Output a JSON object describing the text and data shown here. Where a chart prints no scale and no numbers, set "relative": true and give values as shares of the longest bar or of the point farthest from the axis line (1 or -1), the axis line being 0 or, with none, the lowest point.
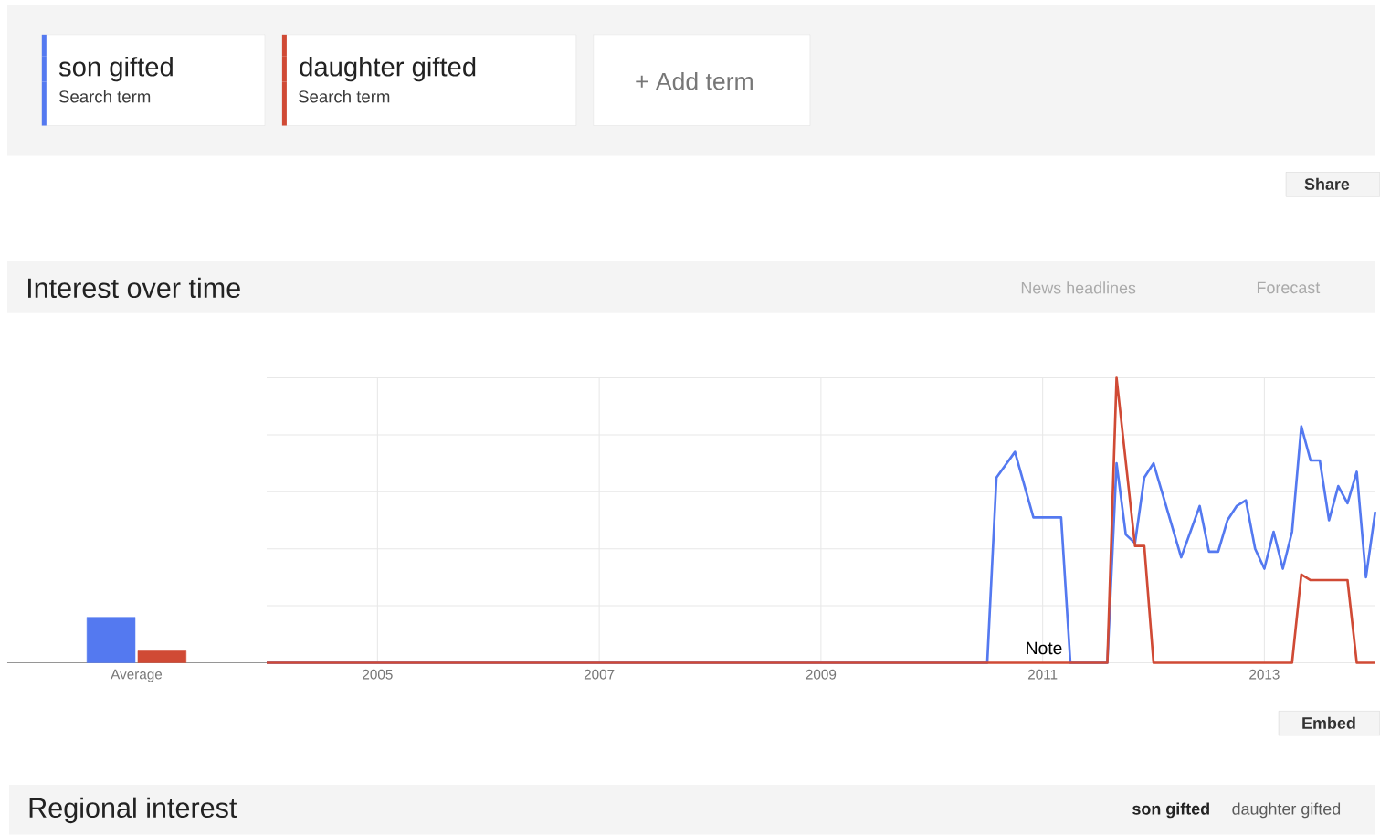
{
  "chart_data": [
    {
      "type": "line",
      "title": "Interest over time",
      "xlim": [
        "2004-01",
        "2014-01"
      ],
      "xticks": [
        "2005",
        "2007",
        "2009",
        "2011",
        "2013"
      ],
      "relative": true,
      "grid": true,
      "legend": "top left",
      "annotations": [
        "Search term",
        "Search term",
        "+ Add term",
        "Share",
        "News headlines",
        "Forecast",
        "Note",
        "Embed",
        "Regional interest",
        "son gifted",
        "daughter gifted"
      ],
      "series": [
        {
          "name": "son gifted",
          "color": "#5479f0",
          "x": [
            "2004-01",
            "2010-07",
            "2010-08",
            "2010-10",
            "2010-12",
            "2011-03",
            "2011-04",
            "2011-08",
            "2011-09",
            "2011-10",
            "2011-11",
            "2011-12",
            "2012-01",
            "2012-02",
            "2012-04",
            "2012-06",
            "2012-07",
            "2012-08",
            "2012-09",
            "2012-10",
            "2012-11",
            "2012-12",
            "2013-01",
            "2013-02",
            "2013-03",
            "2013-04",
            "2013-05",
            "2013-06",
            "2013-07",
            "2013-08",
            "2013-09",
            "2013-10",
            "2013-11",
            "2013-12",
            "2014-01"
          ],
          "values": [
            0,
            0,
            0.65,
            0.74,
            0.51,
            0.51,
            0,
            0,
            0.7,
            0.45,
            0.42,
            0.65,
            0.7,
            0.59,
            0.37,
            0.55,
            0.39,
            0.39,
            0.5,
            0.55,
            0.57,
            0.4,
            0.33,
            0.46,
            0.33,
            0.46,
            0.83,
            0.71,
            0.71,
            0.5,
            0.62,
            0.56,
            0.67,
            0.3,
            0.53
          ]
        },
        {
          "name": "daughter gifted",
          "color": "#d04a35",
          "x": [
            "2004-01",
            "2011-08",
            "2011-09",
            "2011-11",
            "2011-12",
            "2012-01",
            "2013-04",
            "2013-05",
            "2013-06",
            "2013-10",
            "2013-11",
            "2014-01"
          ],
          "values": [
            0,
            0,
            1,
            0.41,
            0.41,
            0,
            0,
            0.31,
            0.29,
            0.29,
            0,
            0
          ]
        }
      ]
    },
    {
      "type": "bar",
      "categories": [
        "Average"
      ],
      "relative": true,
      "series": [
        {
          "color": "#5479f0",
          "values": [
            1
          ]
        },
        {
          "color": "#d04a35",
          "values": [
            0.26
          ]
        }
      ]
    }
  ]
}
